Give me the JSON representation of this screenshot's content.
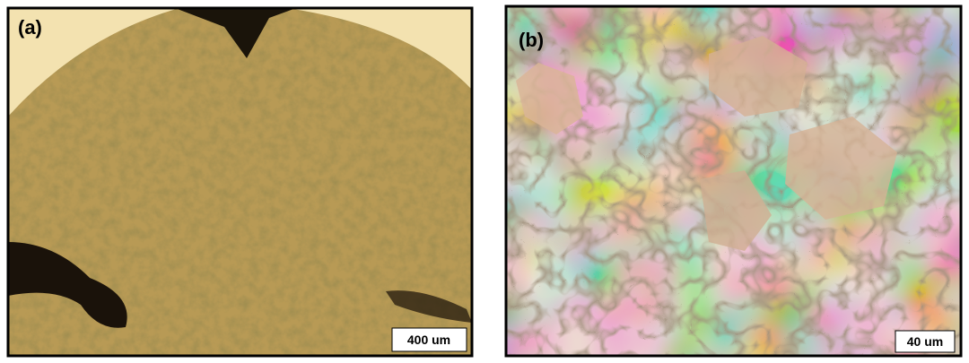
{
  "panels": [
    {
      "label": "(a)",
      "scale_bar": "400 um"
    },
    {
      "label": "(b)",
      "scale_bar": "40 um"
    }
  ]
}
